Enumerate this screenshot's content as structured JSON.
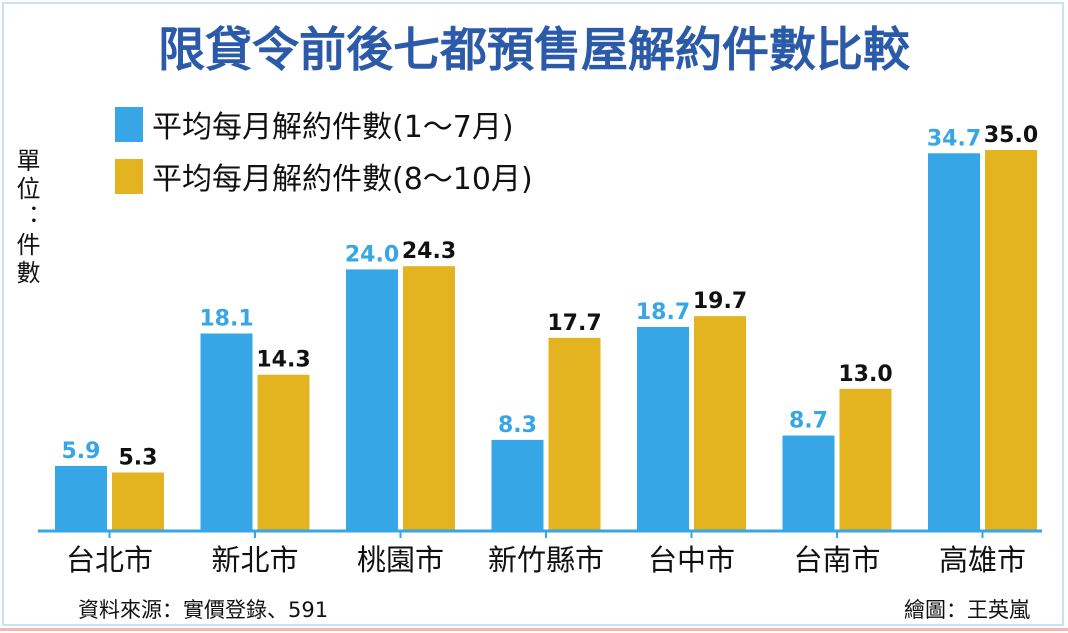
{
  "chart_data": {
    "type": "bar",
    "title": "限貸令前後七都預售屋解約件數比較",
    "ylabel": "單位：件數",
    "xlabel": "",
    "categories": [
      "台北市",
      "新北市",
      "桃園市",
      "新竹縣市",
      "台中市",
      "台南市",
      "高雄市"
    ],
    "series": [
      {
        "name": "平均每月解約件數(1～7月)",
        "color": "#36a6e6",
        "label_color": "#36a6e6",
        "values": [
          5.9,
          18.1,
          24.0,
          8.3,
          18.7,
          8.7,
          34.7
        ],
        "labels": [
          "5.9",
          "18.1",
          "24.0",
          "8.3",
          "18.7",
          "8.7",
          "34.7"
        ]
      },
      {
        "name": "平均每月解約件數(8～10月)",
        "color": "#e3b420",
        "label_color": "#111111",
        "values": [
          5.3,
          14.3,
          24.3,
          17.7,
          19.7,
          13.0,
          35.0
        ],
        "labels": [
          "5.3",
          "14.3",
          "24.3",
          "17.7",
          "19.7",
          "13.0",
          "35.0"
        ]
      }
    ],
    "ylim": [
      0,
      35
    ],
    "grid": false,
    "legend_position": "top-left",
    "source": "資料來源：實價登錄、591",
    "credit": "繪圖：王英嵐"
  },
  "colors": {
    "title": "#2b5ba8",
    "axis": "#36a6e6"
  }
}
